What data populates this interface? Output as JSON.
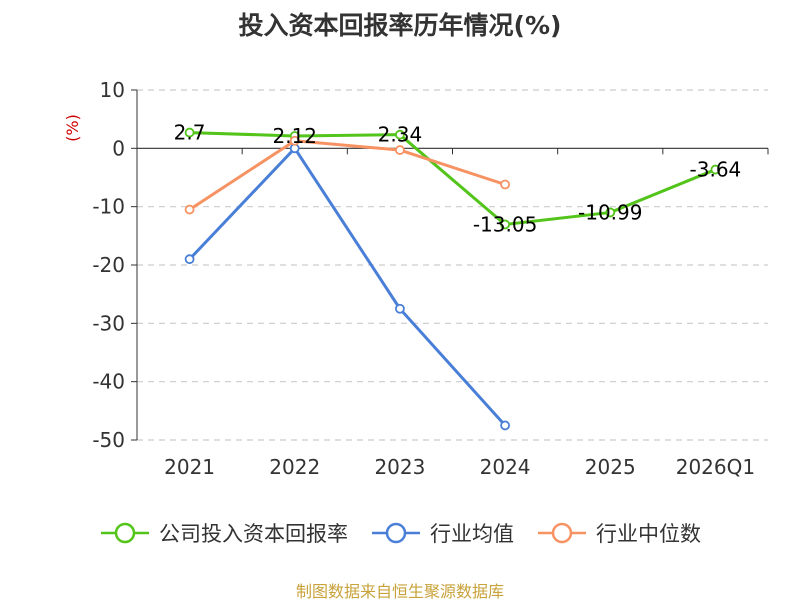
{
  "chart_data": {
    "type": "line",
    "title": "投入资本回报率历年情况(%)",
    "ylabel": "(%)",
    "xlabel": "",
    "categories": [
      "2021",
      "2022",
      "2023",
      "2024",
      "2025",
      "2026Q1"
    ],
    "ylim": [
      -50,
      10
    ],
    "yticks": [
      10,
      0,
      -10,
      -20,
      -30,
      -40,
      -50
    ],
    "grid": true,
    "legend_position": "bottom",
    "series": [
      {
        "name": "公司投入资本回报率",
        "color": "#52c41a",
        "values": [
          2.7,
          2.12,
          2.34,
          -13.05,
          -10.99,
          -3.64
        ],
        "labels": [
          "2.7",
          "2.12",
          "2.34",
          "-13.05",
          "-10.99",
          "-3.64"
        ]
      },
      {
        "name": "行业均值",
        "color": "#4a7fd8",
        "values": [
          -19.0,
          0.0,
          -27.5,
          -47.5,
          null,
          null
        ]
      },
      {
        "name": "行业中位数",
        "color": "#f79262",
        "values": [
          -10.5,
          1.3,
          -0.3,
          -6.2,
          null,
          null
        ]
      }
    ],
    "source": "制图数据来自恒生聚源数据库"
  }
}
